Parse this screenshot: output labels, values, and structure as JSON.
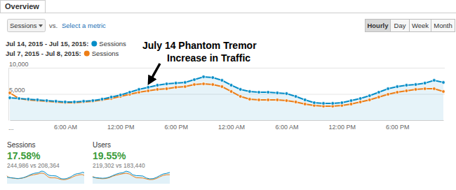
{
  "page": {
    "tab": "Overview",
    "metric": "Sessions",
    "vs": "vs.",
    "select_metric": "Select a metric",
    "granularity": [
      "Hourly",
      "Day",
      "Week",
      "Month"
    ],
    "more": "..."
  },
  "chart_data": {
    "type": "line",
    "annotation": [
      "July 14 Phantom Tremor",
      "Increase in Traffic"
    ],
    "categories": [
      null,
      null,
      null,
      null,
      null,
      null,
      "6:00 AM",
      null,
      null,
      null,
      null,
      null,
      "12:00 PM",
      null,
      null,
      null,
      null,
      null,
      "6:00 PM",
      null,
      null,
      null,
      null,
      null,
      "12:00 AM",
      null,
      null,
      null,
      null,
      null,
      "6:00 AM",
      null,
      null,
      null,
      null,
      null,
      "12:00 PM",
      null,
      null,
      null,
      null,
      null,
      "6:00 PM",
      null,
      null,
      null,
      null,
      null
    ],
    "series": [
      {
        "name": "Sessions",
        "period": "Jul 14, 2015 - Jul 15, 2015:",
        "color": "#058dc7",
        "type": "area",
        "marker": "circle",
        "values": [
          4270,
          4130,
          4000,
          3870,
          3730,
          3600,
          3470,
          3470,
          3600,
          3730,
          4000,
          4400,
          4800,
          5330,
          5870,
          6270,
          6670,
          6930,
          7070,
          7200,
          7730,
          8270,
          8130,
          7600,
          6670,
          5870,
          5470,
          5330,
          5330,
          5200,
          5070,
          4530,
          3870,
          3330,
          3200,
          3200,
          3330,
          3730,
          4130,
          4670,
          5330,
          6000,
          6400,
          6670,
          6800,
          7070,
          7600,
          7200
        ]
      },
      {
        "name": "Sessions",
        "period": "Jul 7, 2015 - Jul 8, 2015:",
        "color": "#ed7e17",
        "type": "line",
        "marker": "circle",
        "values": [
          5200,
          4130,
          3870,
          3730,
          3600,
          3470,
          3330,
          3330,
          3470,
          3600,
          3870,
          4130,
          4530,
          4930,
          5330,
          5600,
          5870,
          6000,
          6270,
          6400,
          6800,
          6930,
          6800,
          6400,
          5470,
          4530,
          4000,
          3870,
          3870,
          3870,
          3730,
          3470,
          3070,
          2800,
          2670,
          2670,
          2800,
          3070,
          3470,
          3870,
          4400,
          4930,
          5330,
          5600,
          5870,
          6000,
          6000,
          5470
        ]
      }
    ],
    "ylim": [
      0,
      10000
    ],
    "yticks": [
      {
        "value": 5000,
        "label": "5,000"
      },
      {
        "value": 10000,
        "label": "10,000"
      }
    ],
    "grid": true,
    "legend": "top-left"
  },
  "scorecards": [
    {
      "label": "Sessions",
      "change": "17.58%",
      "comparison": "244,986 vs 208,364"
    },
    {
      "label": "Users",
      "change": "19.55%",
      "comparison": "219,302 vs 183,440",
      "sparkline": [
        {
          "color": "#058dc7",
          "values": [
            3850,
            3600,
            3400,
            3250,
            3400,
            3950,
            4800,
            5650,
            6250,
            6500,
            7450,
            6850,
            5280,
            4800,
            4720,
            4550,
            3400,
            2900,
            3000,
            3700,
            4800,
            5750,
            6120,
            6700
          ]
        },
        {
          "color": "#ed7e17",
          "values": [
            4300,
            3350,
            3100,
            2950,
            3100,
            3600,
            4450,
            5050,
            5500,
            5900,
            6200,
            5750,
            4500,
            3550,
            3480,
            3380,
            2850,
            2450,
            2500,
            3100,
            4050,
            4900,
            5300,
            5350
          ]
        }
      ]
    }
  ]
}
